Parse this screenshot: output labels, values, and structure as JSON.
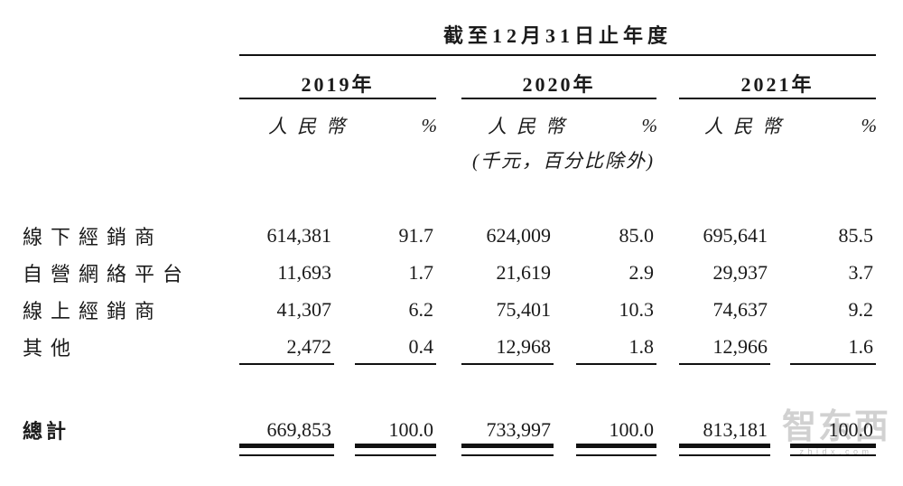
{
  "table": {
    "period_header": "截至12月31日止年度",
    "years": {
      "y2019": "2019年",
      "y2020": "2020年",
      "y2021": "2021年"
    },
    "currency_header": "人民幣",
    "percent_header": "%",
    "unit_note": "(千元，百分比除外)",
    "rows": [
      {
        "label": "線下經銷商",
        "values": [
          "614,381",
          "91.7",
          "624,009",
          "85.0",
          "695,641",
          "85.5"
        ]
      },
      {
        "label": "自營網絡平台",
        "values": [
          "11,693",
          "1.7",
          "21,619",
          "2.9",
          "29,937",
          "3.7"
        ]
      },
      {
        "label": "線上經銷商",
        "values": [
          "41,307",
          "6.2",
          "75,401",
          "10.3",
          "74,637",
          "9.2"
        ]
      },
      {
        "label": "其他",
        "values": [
          "2,472",
          "0.4",
          "12,968",
          "1.8",
          "12,966",
          "1.6"
        ]
      }
    ],
    "total": {
      "label": "總計",
      "values": [
        "669,853",
        "100.0",
        "733,997",
        "100.0",
        "813,181",
        "100.0"
      ]
    },
    "colors": {
      "text": "#1a1a1a",
      "rule": "#111111",
      "background": "#ffffff"
    }
  },
  "watermark": {
    "logo_text": "智东西",
    "domain_text": "zhidx.com",
    "color": "#c6c6c6"
  }
}
